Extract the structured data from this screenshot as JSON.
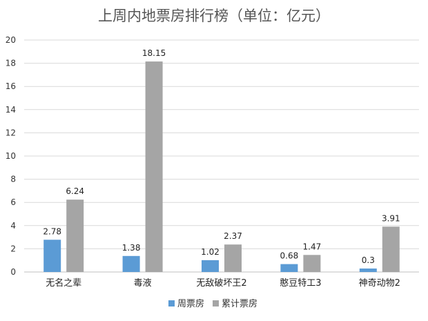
{
  "chart_data": {
    "type": "bar",
    "title": "上周内地票房排行榜（单位：亿元）",
    "categories": [
      "无名之辈",
      "毒液",
      "无敌破坏王2",
      "憨豆特工3",
      "神奇动物2"
    ],
    "series": [
      {
        "name": "周票房",
        "values": [
          2.78,
          1.38,
          1.02,
          0.68,
          0.3
        ],
        "value_labels": [
          "2.78",
          "1.38",
          "1.02",
          "0.68",
          "0.3"
        ],
        "color": "#5b9bd5"
      },
      {
        "name": "累计票房",
        "values": [
          6.24,
          18.15,
          2.37,
          1.47,
          3.91
        ],
        "value_labels": [
          "6.24",
          "18.15",
          "2.37",
          "1.47",
          "3.91"
        ],
        "color": "#a5a5a5"
      }
    ],
    "ylim": [
      0,
      20
    ],
    "yticks": [
      0,
      2,
      4,
      6,
      8,
      10,
      12,
      14,
      16,
      18,
      20
    ],
    "grid": true,
    "legend_position": "bottom"
  }
}
